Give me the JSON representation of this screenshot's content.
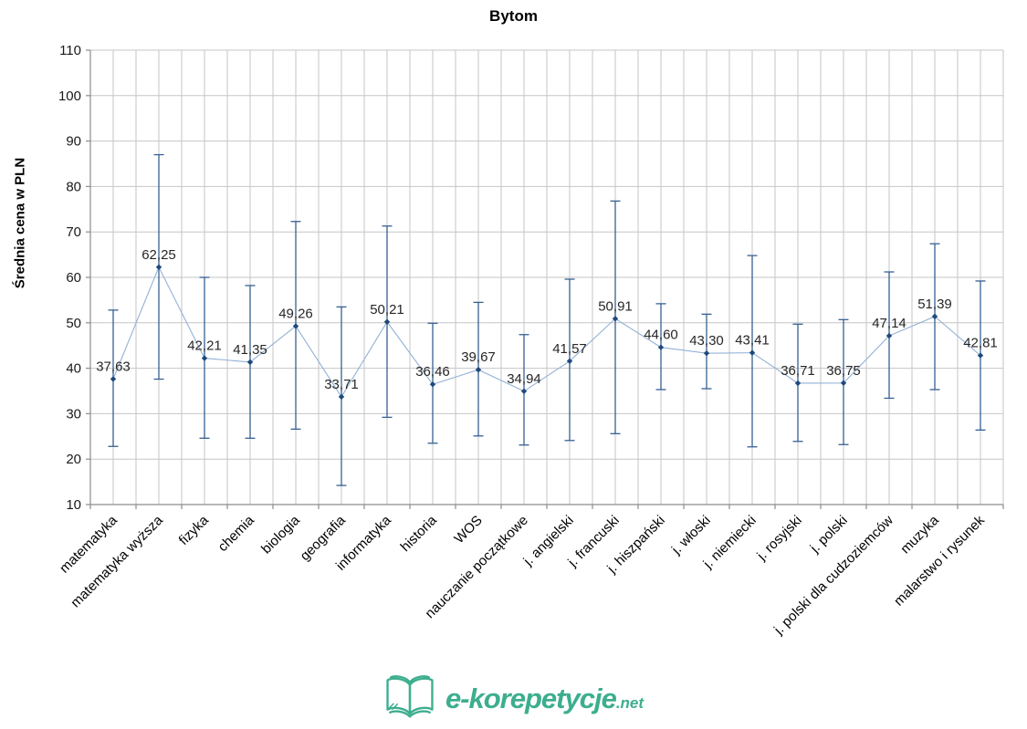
{
  "footer_logo": {
    "text": "e-korepetycje",
    "suffix": ".net",
    "color": "#3CAE8E",
    "icon": "open-book-icon"
  },
  "chart_data": {
    "type": "line",
    "title": "Bytom",
    "ylabel": "Średnia cena w PLN",
    "xlabel": "",
    "ylim": [
      10,
      110
    ],
    "yticks": [
      10,
      20,
      30,
      40,
      50,
      60,
      70,
      80,
      90,
      100,
      110
    ],
    "grid": true,
    "legend": false,
    "error_bars": true,
    "colors": {
      "line": "#92B1D5",
      "marker": "#1F497D",
      "error_bar": "#366092",
      "gridline": "#C6C6C6",
      "axis": "#8C8C8C",
      "tick_text": "#1A1A1A",
      "label_text": "#262626"
    },
    "categories": [
      "matematyka",
      "matematyka wyższa",
      "fizyka",
      "chemia",
      "biologia",
      "geografia",
      "informatyka",
      "historia",
      "WOS",
      "nauczanie początkowe",
      "j. angielski",
      "j. francuski",
      "j. hiszpański",
      "j. włoski",
      "j. niemiecki",
      "j. rosyjski",
      "j. polski",
      "j. polski dla cudzoziemców",
      "muzyka",
      "malarstwo i rysunek"
    ],
    "values": [
      37.63,
      62.25,
      42.21,
      41.35,
      49.26,
      33.71,
      50.21,
      36.46,
      39.67,
      34.94,
      41.57,
      50.91,
      44.6,
      43.3,
      43.41,
      36.71,
      36.75,
      47.14,
      51.39,
      42.81
    ],
    "value_labels": [
      "37,63",
      "62,25",
      "42,21",
      "41,35",
      "49,26",
      "33,71",
      "50,21",
      "36,46",
      "39,67",
      "34,94",
      "41,57",
      "50,91",
      "44,60",
      "43,30",
      "43,41",
      "36,71",
      "36,75",
      "47,14",
      "51,39",
      "42,81"
    ],
    "error_high": [
      52.8,
      87.0,
      60.0,
      58.2,
      72.3,
      53.5,
      71.3,
      49.9,
      54.5,
      47.4,
      59.6,
      76.8,
      54.2,
      51.9,
      64.8,
      49.7,
      50.7,
      61.2,
      67.4,
      59.2
    ],
    "error_low": [
      22.8,
      37.6,
      24.6,
      24.6,
      26.6,
      14.2,
      29.2,
      23.5,
      25.1,
      23.1,
      24.1,
      25.6,
      35.3,
      35.5,
      22.7,
      23.9,
      23.2,
      33.4,
      35.3,
      26.4
    ]
  }
}
